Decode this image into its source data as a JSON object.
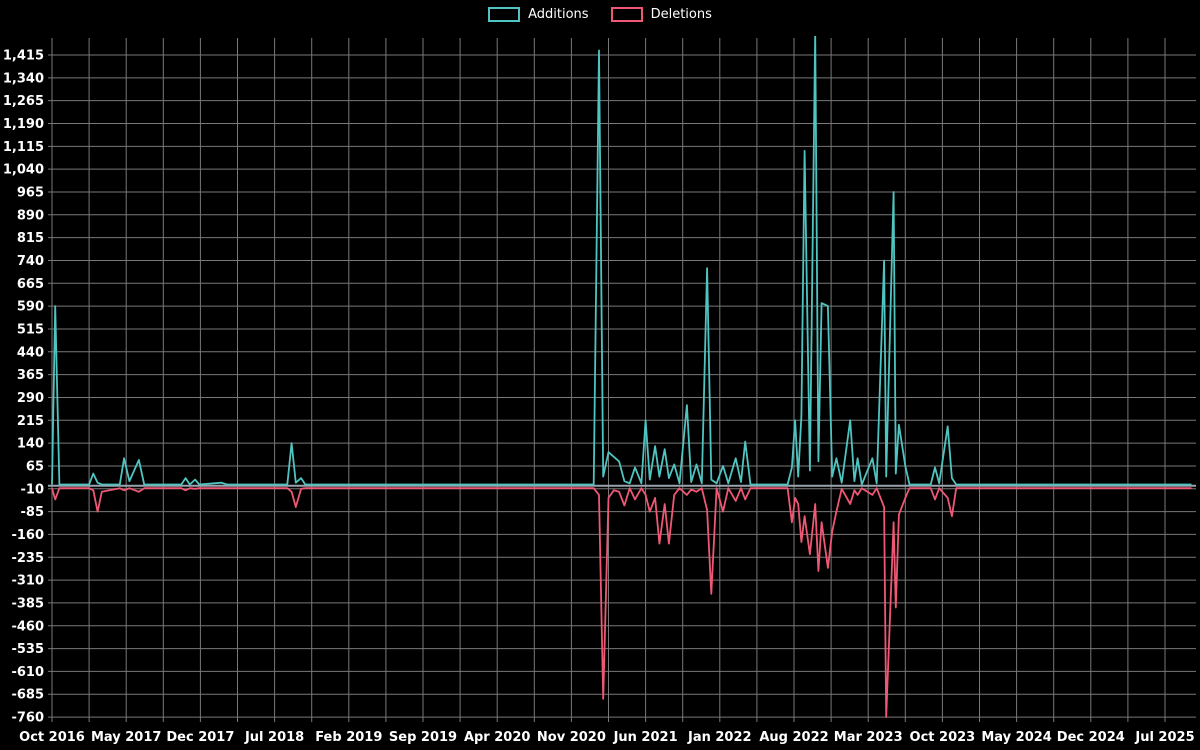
{
  "page": {
    "background": "#000000"
  },
  "chart_data": {
    "type": "line",
    "legend_position": "top-center",
    "grid": true,
    "background": "#000000",
    "grid_color": "#787878",
    "zero_line_color": "#9aa4ae",
    "text_color": "#ffffff",
    "x_axis": {
      "tick_labels": [
        "Oct 2016",
        "May 2017",
        "Dec 2017",
        "Jul 2018",
        "Feb 2019",
        "Sep 2019",
        "Apr 2020",
        "Nov 2020",
        "Jun 2021",
        "Jan 2022",
        "Aug 2022",
        "Mar 2023",
        "Oct 2023",
        "May 2024",
        "Dec 2024",
        "Jul 2025"
      ],
      "tick_months": [
        0,
        7,
        14,
        21,
        28,
        35,
        42,
        49,
        56,
        63,
        70,
        77,
        84,
        91,
        98,
        105
      ],
      "months_total": 105,
      "series_extent_months": 107.5
    },
    "y_axis": {
      "max": 1415,
      "min": -760,
      "step": 75,
      "tick_values": [
        1415,
        1340,
        1265,
        1190,
        1115,
        1040,
        965,
        890,
        815,
        740,
        665,
        590,
        515,
        440,
        365,
        290,
        215,
        140,
        65,
        -10,
        -85,
        -160,
        -235,
        -310,
        -385,
        -460,
        -535,
        -610,
        -685,
        -760
      ],
      "tick_labels": [
        "1,415",
        "1,340",
        "1,265",
        "1,190",
        "1,115",
        "1,040",
        "965",
        "890",
        "815",
        "740",
        "665",
        "590",
        "515",
        "440",
        "365",
        "290",
        "215",
        "140",
        "65",
        "-10",
        "-85",
        "-160",
        "-235",
        "-310",
        "-385",
        "-460",
        "-535",
        "-610",
        "-685",
        "-760"
      ]
    },
    "x_months": [
      0,
      0.3,
      0.7,
      3.5,
      3.9,
      4.3,
      4.7,
      6.4,
      6.8,
      7.3,
      8.2,
      8.7,
      12.2,
      12.6,
      13,
      13.5,
      13.9,
      16,
      16.5,
      22.2,
      22.6,
      23,
      23.5,
      23.9,
      51.1,
      51.6,
      52,
      52.5,
      53,
      53.5,
      54,
      54.5,
      55,
      55.6,
      56,
      56.4,
      56.9,
      57.3,
      57.8,
      58.2,
      58.7,
      59.2,
      59.9,
      60.3,
      60.8,
      61.3,
      61.8,
      62.2,
      62.7,
      63.3,
      63.8,
      64.5,
      65,
      65.4,
      65.9,
      69.4,
      69.8,
      70.1,
      70.4,
      70.7,
      71,
      71.5,
      72,
      72.3,
      72.6,
      73.2,
      73.6,
      74,
      74.5,
      75.3,
      75.7,
      76,
      76.4,
      77.4,
      77.8,
      78.5,
      78.7,
      79.4,
      79.6,
      79.9,
      80.5,
      80.9,
      82.9,
      83.3,
      83.7,
      84.5,
      84.9,
      85.3,
      107.5
    ],
    "series": [
      {
        "name": "Additions",
        "color": "#4fc4c0",
        "values": [
          4,
          590,
          4,
          4,
          40,
          10,
          4,
          4,
          90,
          15,
          85,
          4,
          4,
          25,
          4,
          20,
          4,
          10,
          4,
          4,
          140,
          10,
          25,
          4,
          4,
          1430,
          30,
          110,
          95,
          80,
          15,
          8,
          60,
          8,
          215,
          20,
          130,
          30,
          120,
          25,
          70,
          8,
          265,
          12,
          70,
          8,
          715,
          20,
          8,
          65,
          8,
          90,
          12,
          145,
          4,
          4,
          60,
          215,
          30,
          230,
          1100,
          50,
          1490,
          80,
          600,
          590,
          30,
          90,
          10,
          215,
          15,
          90,
          4,
          90,
          8,
          740,
          30,
          965,
          40,
          200,
          65,
          4,
          4,
          60,
          8,
          195,
          25,
          4,
          4
        ]
      },
      {
        "name": "Deletions",
        "color": "#ee5874",
        "values": [
          -8,
          -45,
          -8,
          -8,
          -15,
          -85,
          -20,
          -8,
          -15,
          -8,
          -20,
          -8,
          -8,
          -15,
          -8,
          -10,
          -8,
          -8,
          -8,
          -8,
          -20,
          -70,
          -10,
          -8,
          -8,
          -30,
          -700,
          -40,
          -15,
          -20,
          -65,
          -8,
          -45,
          -8,
          -30,
          -85,
          -40,
          -190,
          -60,
          -190,
          -30,
          -8,
          -30,
          -12,
          -20,
          -8,
          -80,
          -355,
          -8,
          -85,
          -8,
          -50,
          -8,
          -45,
          -8,
          -8,
          -120,
          -40,
          -60,
          -185,
          -100,
          -225,
          -60,
          -280,
          -120,
          -270,
          -150,
          -85,
          -10,
          -60,
          -15,
          -30,
          -8,
          -30,
          -8,
          -70,
          -760,
          -120,
          -400,
          -95,
          -40,
          -8,
          -8,
          -45,
          -8,
          -40,
          -100,
          -8,
          -8
        ]
      }
    ]
  }
}
